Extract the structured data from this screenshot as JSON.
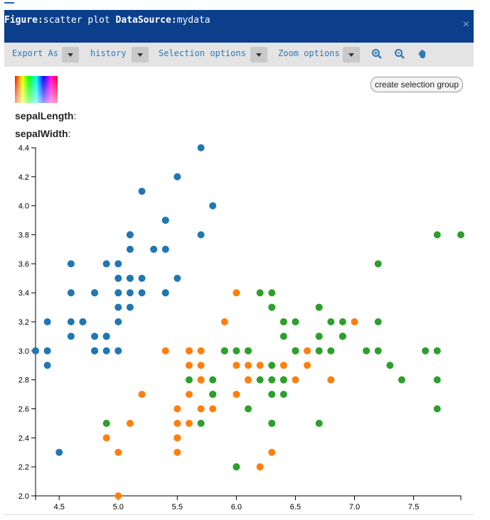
{
  "header": {
    "figure_label": "Figure:",
    "figure_value": "scatter plot",
    "source_label": "DataSource:",
    "source_value": "mydata",
    "close_glyph": "×"
  },
  "toolbar": {
    "export_label": "Export As",
    "history_label": "history",
    "selection_label": "Selection options",
    "zoom_label": "Zoom options",
    "zoom_in_icon": "zoom-in-icon",
    "zoom_out_icon": "zoom-out-icon",
    "pan_icon": "hand-pan-icon"
  },
  "panel": {
    "create_group_label": "create selection group",
    "field1_label": "sepalLength",
    "field2_label": "sepalWidth",
    "colon": ":"
  },
  "colors": {
    "header_bg": "#0b3f8c",
    "link": "#2a7ab8",
    "series_blue": "#1f77b4",
    "series_orange": "#ff7f0e",
    "series_green": "#2ca02c"
  },
  "chart_data": {
    "type": "scatter",
    "title": "",
    "xlabel": "",
    "ylabel": "",
    "xlim": [
      4.3,
      7.9
    ],
    "ylim": [
      2.0,
      4.4
    ],
    "xticks": [
      4.5,
      5.0,
      5.5,
      6.0,
      6.5,
      7.0,
      7.5
    ],
    "yticks": [
      2.0,
      2.2,
      2.4,
      2.6,
      2.8,
      3.0,
      3.2,
      3.4,
      3.6,
      3.8,
      4.0,
      4.2,
      4.4
    ],
    "grid": false,
    "series": [
      {
        "color": "#1f77b4",
        "points": [
          [
            5.1,
            3.5
          ],
          [
            4.9,
            3.0
          ],
          [
            4.7,
            3.2
          ],
          [
            4.6,
            3.1
          ],
          [
            5.0,
            3.6
          ],
          [
            5.4,
            3.9
          ],
          [
            4.6,
            3.4
          ],
          [
            5.0,
            3.4
          ],
          [
            4.4,
            2.9
          ],
          [
            4.9,
            3.1
          ],
          [
            5.4,
            3.7
          ],
          [
            4.8,
            3.4
          ],
          [
            4.8,
            3.0
          ],
          [
            4.3,
            3.0
          ],
          [
            5.8,
            4.0
          ],
          [
            5.7,
            4.4
          ],
          [
            5.4,
            3.9
          ],
          [
            5.1,
            3.5
          ],
          [
            5.7,
            3.8
          ],
          [
            5.1,
            3.8
          ],
          [
            5.4,
            3.4
          ],
          [
            5.1,
            3.7
          ],
          [
            4.6,
            3.6
          ],
          [
            5.1,
            3.3
          ],
          [
            4.8,
            3.4
          ],
          [
            5.0,
            3.0
          ],
          [
            5.0,
            3.4
          ],
          [
            5.2,
            3.5
          ],
          [
            5.2,
            3.4
          ],
          [
            4.7,
            3.2
          ],
          [
            4.8,
            3.1
          ],
          [
            5.4,
            3.4
          ],
          [
            5.2,
            4.1
          ],
          [
            5.5,
            4.2
          ],
          [
            4.9,
            3.1
          ],
          [
            5.0,
            3.2
          ],
          [
            5.5,
            3.5
          ],
          [
            4.9,
            3.6
          ],
          [
            4.4,
            3.0
          ],
          [
            5.1,
            3.4
          ],
          [
            5.0,
            3.5
          ],
          [
            4.5,
            2.3
          ],
          [
            4.4,
            3.2
          ],
          [
            5.0,
            3.5
          ],
          [
            5.1,
            3.8
          ],
          [
            4.8,
            3.0
          ],
          [
            5.1,
            3.8
          ],
          [
            4.6,
            3.2
          ],
          [
            5.3,
            3.7
          ],
          [
            5.0,
            3.3
          ]
        ]
      },
      {
        "color": "#ff7f0e",
        "points": [
          [
            7.0,
            3.2
          ],
          [
            6.4,
            3.2
          ],
          [
            6.9,
            3.1
          ],
          [
            5.5,
            2.3
          ],
          [
            6.5,
            2.8
          ],
          [
            5.7,
            2.8
          ],
          [
            6.3,
            3.3
          ],
          [
            4.9,
            2.4
          ],
          [
            6.6,
            2.9
          ],
          [
            5.2,
            2.7
          ],
          [
            5.0,
            2.0
          ],
          [
            5.9,
            3.0
          ],
          [
            6.0,
            2.2
          ],
          [
            6.1,
            2.9
          ],
          [
            5.6,
            2.9
          ],
          [
            6.7,
            3.1
          ],
          [
            5.6,
            3.0
          ],
          [
            5.8,
            2.7
          ],
          [
            6.2,
            2.2
          ],
          [
            5.6,
            2.5
          ],
          [
            5.9,
            3.2
          ],
          [
            6.1,
            2.8
          ],
          [
            6.3,
            2.5
          ],
          [
            6.1,
            2.8
          ],
          [
            6.4,
            2.9
          ],
          [
            6.6,
            3.0
          ],
          [
            6.8,
            2.8
          ],
          [
            6.7,
            3.0
          ],
          [
            6.0,
            2.9
          ],
          [
            5.7,
            2.6
          ],
          [
            5.5,
            2.4
          ],
          [
            5.5,
            2.4
          ],
          [
            5.8,
            2.7
          ],
          [
            6.0,
            2.7
          ],
          [
            5.4,
            3.0
          ],
          [
            6.0,
            3.4
          ],
          [
            6.7,
            3.1
          ],
          [
            6.3,
            2.3
          ],
          [
            5.6,
            3.0
          ],
          [
            5.5,
            2.5
          ],
          [
            5.5,
            2.6
          ],
          [
            6.1,
            3.0
          ],
          [
            5.8,
            2.6
          ],
          [
            5.0,
            2.3
          ],
          [
            5.6,
            2.7
          ],
          [
            5.7,
            3.0
          ],
          [
            5.7,
            2.9
          ],
          [
            6.2,
            2.9
          ],
          [
            5.1,
            2.5
          ],
          [
            5.7,
            2.8
          ]
        ]
      },
      {
        "color": "#2ca02c",
        "points": [
          [
            6.3,
            3.3
          ],
          [
            5.8,
            2.7
          ],
          [
            7.1,
            3.0
          ],
          [
            6.3,
            2.9
          ],
          [
            6.5,
            3.0
          ],
          [
            7.6,
            3.0
          ],
          [
            4.9,
            2.5
          ],
          [
            7.3,
            2.9
          ],
          [
            6.7,
            2.5
          ],
          [
            7.2,
            3.6
          ],
          [
            6.5,
            3.2
          ],
          [
            6.4,
            2.7
          ],
          [
            6.8,
            3.0
          ],
          [
            5.7,
            2.5
          ],
          [
            5.8,
            2.8
          ],
          [
            6.4,
            3.2
          ],
          [
            6.5,
            3.0
          ],
          [
            7.7,
            3.8
          ],
          [
            7.7,
            2.6
          ],
          [
            6.0,
            2.2
          ],
          [
            6.9,
            3.2
          ],
          [
            5.6,
            2.8
          ],
          [
            7.7,
            2.8
          ],
          [
            6.3,
            2.7
          ],
          [
            6.7,
            3.3
          ],
          [
            7.2,
            3.2
          ],
          [
            6.2,
            2.8
          ],
          [
            6.1,
            3.0
          ],
          [
            6.4,
            2.8
          ],
          [
            7.2,
            3.0
          ],
          [
            7.4,
            2.8
          ],
          [
            7.9,
            3.8
          ],
          [
            6.4,
            2.8
          ],
          [
            6.3,
            2.8
          ],
          [
            6.1,
            2.6
          ],
          [
            7.7,
            3.0
          ],
          [
            6.3,
            3.4
          ],
          [
            6.4,
            3.1
          ],
          [
            6.0,
            3.0
          ],
          [
            6.9,
            3.1
          ],
          [
            6.7,
            3.1
          ],
          [
            6.9,
            3.1
          ],
          [
            5.8,
            2.7
          ],
          [
            6.8,
            3.2
          ],
          [
            6.7,
            3.3
          ],
          [
            6.7,
            3.0
          ],
          [
            6.3,
            2.5
          ],
          [
            6.5,
            3.0
          ],
          [
            6.2,
            3.4
          ],
          [
            5.9,
            3.0
          ]
        ]
      }
    ]
  }
}
